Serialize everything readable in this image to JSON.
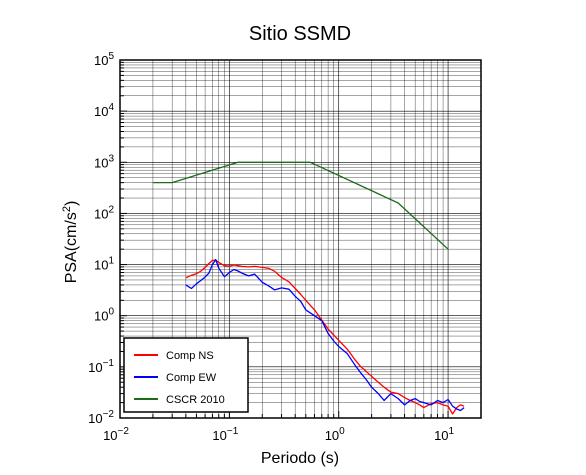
{
  "chart_data": {
    "type": "line",
    "title": "Sitio SSMD",
    "xlabel": "Periodo (s)",
    "ylabel": "PSA(cm/s2)",
    "ylabel_parts": {
      "main": "PSA(cm/s",
      "sup": "2",
      "close": ")"
    },
    "xscale": "log",
    "yscale": "log",
    "xlim": [
      0.01,
      20
    ],
    "ylim": [
      0.01,
      100000
    ],
    "x_ticks": [
      {
        "value": 0.01,
        "base": "10",
        "exp": "−2"
      },
      {
        "value": 0.1,
        "base": "10",
        "exp": "−1"
      },
      {
        "value": 1,
        "base": "10",
        "exp": "0"
      },
      {
        "value": 10,
        "base": "10",
        "exp": "1"
      }
    ],
    "y_ticks": [
      {
        "value": 0.01,
        "base": "10",
        "exp": "−2"
      },
      {
        "value": 0.1,
        "base": "10",
        "exp": "−1"
      },
      {
        "value": 1,
        "base": "10",
        "exp": "0"
      },
      {
        "value": 10,
        "base": "10",
        "exp": "1"
      },
      {
        "value": 100,
        "base": "10",
        "exp": "2"
      },
      {
        "value": 1000,
        "base": "10",
        "exp": "3"
      },
      {
        "value": 10000,
        "base": "10",
        "exp": "4"
      },
      {
        "value": 100000,
        "base": "10",
        "exp": "5"
      }
    ],
    "grid": true,
    "legend_position": "bottom-left",
    "series": [
      {
        "name": "Comp NS",
        "color": "#ff0000",
        "x": [
          0.04,
          0.045,
          0.05,
          0.055,
          0.06,
          0.065,
          0.07,
          0.075,
          0.08,
          0.09,
          0.1,
          0.11,
          0.12,
          0.13,
          0.15,
          0.17,
          0.2,
          0.23,
          0.26,
          0.3,
          0.35,
          0.4,
          0.45,
          0.5,
          0.6,
          0.7,
          0.8,
          0.9,
          1.0,
          1.2,
          1.4,
          1.6,
          1.8,
          2.0,
          2.3,
          2.6,
          3.0,
          3.5,
          4.0,
          4.5,
          5.0,
          5.5,
          6.0,
          7.0,
          8.0,
          9.0,
          10.0,
          11.0,
          12.0,
          13.0,
          14.0
        ],
        "y": [
          5.5,
          6.2,
          6.6,
          7.5,
          8.8,
          10.5,
          12.0,
          12.3,
          11.0,
          9.5,
          9.3,
          9.8,
          9.5,
          9.2,
          9.0,
          9.2,
          8.8,
          8.4,
          7.4,
          5.6,
          4.6,
          3.4,
          2.6,
          2.0,
          1.3,
          0.82,
          0.55,
          0.42,
          0.33,
          0.22,
          0.14,
          0.1,
          0.08,
          0.065,
          0.05,
          0.04,
          0.032,
          0.03,
          0.025,
          0.022,
          0.02,
          0.018,
          0.016,
          0.019,
          0.02,
          0.018,
          0.017,
          0.012,
          0.016,
          0.018,
          0.017
        ]
      },
      {
        "name": "Comp EW",
        "color": "#0000ff",
        "x": [
          0.04,
          0.045,
          0.05,
          0.055,
          0.06,
          0.065,
          0.07,
          0.075,
          0.08,
          0.09,
          0.1,
          0.11,
          0.12,
          0.13,
          0.15,
          0.17,
          0.2,
          0.23,
          0.26,
          0.3,
          0.35,
          0.4,
          0.45,
          0.5,
          0.6,
          0.7,
          0.8,
          0.9,
          1.0,
          1.2,
          1.4,
          1.6,
          1.8,
          2.0,
          2.3,
          2.6,
          3.0,
          3.5,
          4.0,
          4.5,
          5.0,
          5.5,
          6.0,
          7.0,
          8.0,
          9.0,
          10.0,
          11.0,
          12.0,
          13.0,
          14.0
        ],
        "y": [
          4.0,
          3.4,
          4.2,
          4.9,
          5.7,
          6.8,
          10.0,
          12.5,
          8.5,
          5.8,
          7.0,
          8.0,
          7.5,
          6.8,
          6.0,
          6.5,
          4.5,
          3.8,
          3.2,
          3.5,
          3.3,
          2.4,
          1.9,
          1.3,
          1.0,
          0.8,
          0.45,
          0.32,
          0.25,
          0.18,
          0.11,
          0.075,
          0.055,
          0.04,
          0.03,
          0.022,
          0.03,
          0.024,
          0.018,
          0.022,
          0.024,
          0.021,
          0.02,
          0.018,
          0.022,
          0.02,
          0.023,
          0.017,
          0.015,
          0.014,
          0.016
        ]
      },
      {
        "name": "CSCR 2010",
        "color": "#1a6b1a",
        "x": [
          0.02,
          0.03,
          0.12,
          0.55,
          3.5,
          10
        ],
        "y": [
          400,
          400,
          1000,
          1000,
          160,
          20
        ]
      }
    ]
  },
  "colors": {
    "grid": "#000000",
    "axis": "#000000",
    "background": "#ffffff"
  }
}
